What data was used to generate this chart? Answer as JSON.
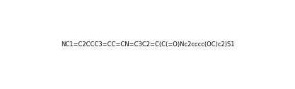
{
  "smiles": "NC1=C2CCC3=CC=CN=C3C2=C(C(=O)Nc2cccc(OC)c2)S1",
  "title": "",
  "figsize": [
    4.17,
    1.27
  ],
  "dpi": 100,
  "background": "#ffffff"
}
